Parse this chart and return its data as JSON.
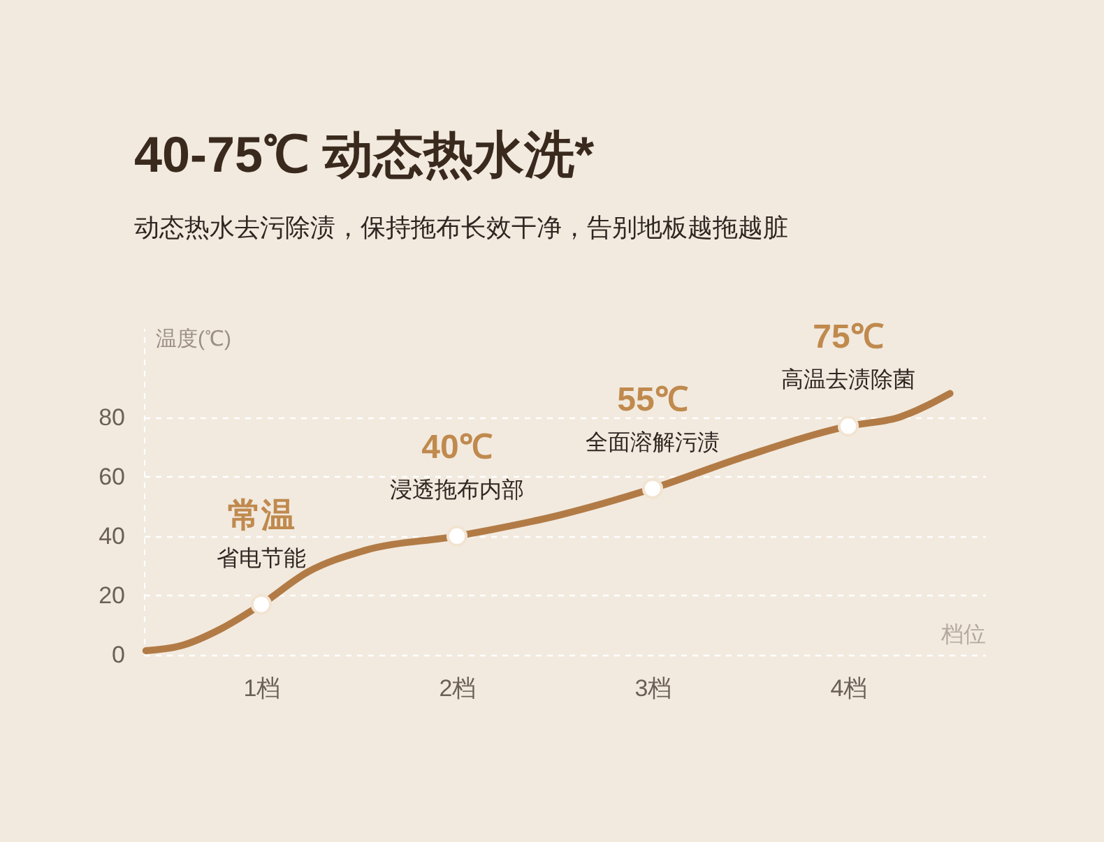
{
  "chart_data": {
    "type": "line",
    "title": "40-75℃ 动态热水洗*",
    "subtitle": "动态热水去污除渍，保持拖布长效干净，告别地板越拖越脏",
    "xlabel": "档位",
    "ylabel": "温度(℃)",
    "xlim": [
      0.4,
      4.7
    ],
    "xticks": [
      {
        "value": 1,
        "label": "1档"
      },
      {
        "value": 2,
        "label": "2档"
      },
      {
        "value": 3,
        "label": "3档"
      },
      {
        "value": 4,
        "label": "4档"
      }
    ],
    "ylim": [
      0,
      110
    ],
    "yticks": [
      0,
      20,
      40,
      60,
      80
    ],
    "grid": "y",
    "series": [
      {
        "color": "#b27b46",
        "x": [
          0.41,
          0.6,
          0.8,
          1.0,
          1.24,
          1.52,
          2.0,
          2.52,
          3.0,
          3.48,
          4.0,
          4.26,
          4.52
        ],
        "values": [
          1.4,
          3.3,
          9,
          17,
          28,
          35,
          40,
          47,
          56,
          67,
          77,
          80,
          88
        ]
      },
      {
        "type": "scatter",
        "color": "#ffffff",
        "marker": "circle",
        "x": [
          1,
          2,
          3,
          4
        ],
        "values": [
          17,
          40,
          56,
          77
        ]
      }
    ],
    "annotations": [
      {
        "text": "常温",
        "x": 1,
        "y": 17
      },
      {
        "text": "省电节能",
        "x": 1,
        "y": 17
      },
      {
        "text": "40℃",
        "x": 2,
        "y": 40
      },
      {
        "text": "浸透拖布内部",
        "x": 2,
        "y": 40
      },
      {
        "text": "55℃",
        "x": 3,
        "y": 56
      },
      {
        "text": "全面溶解污渍",
        "x": 3,
        "y": 56
      },
      {
        "text": "75℃",
        "x": 4,
        "y": 77
      },
      {
        "text": "高温去渍除菌",
        "x": 4,
        "y": 77
      }
    ]
  }
}
